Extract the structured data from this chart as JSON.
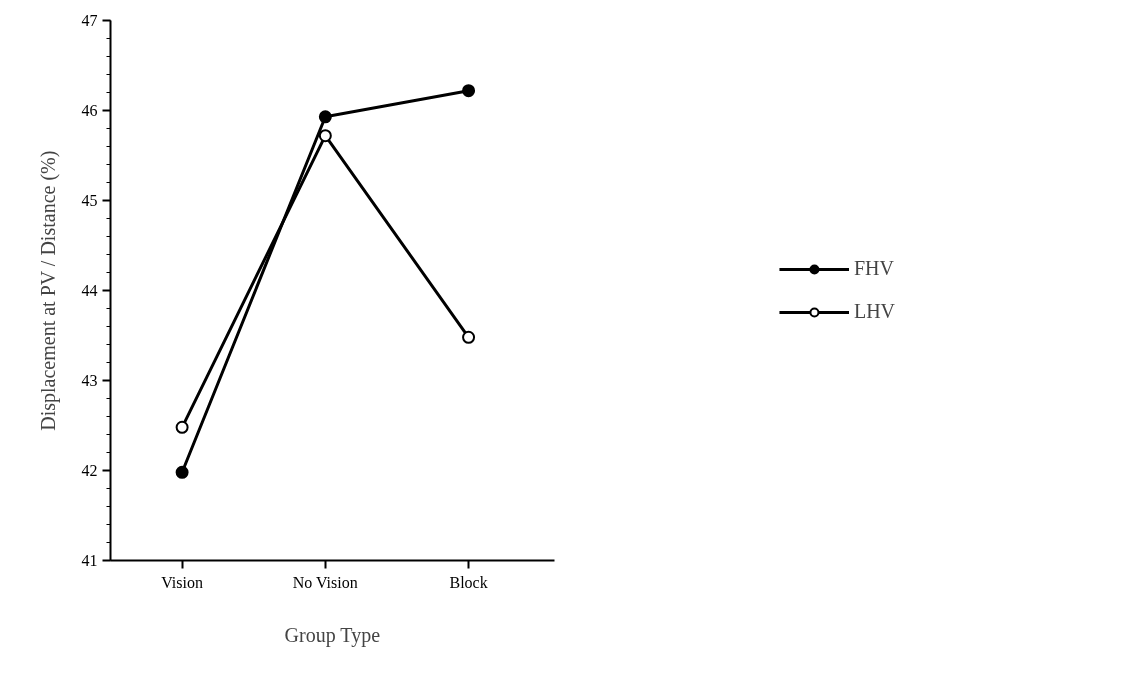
{
  "chart_data": {
    "type": "line",
    "xlabel": "Group Type",
    "ylabel": "Displacement at PV / Distance (%)",
    "categories": [
      "Vision",
      "No Vision",
      "Block"
    ],
    "series": [
      {
        "name": "FHV",
        "color": "#000000",
        "values": [
          41.98,
          45.93,
          46.22
        ]
      },
      {
        "name": "LHV",
        "color": "#000000",
        "values": [
          42.48,
          45.72,
          43.48
        ]
      }
    ],
    "ylim": [
      41,
      47
    ],
    "yticks": [
      41,
      42,
      43,
      44,
      45,
      46,
      47
    ],
    "grid": false,
    "legend": "right",
    "marker": "circle",
    "line_style": "solid"
  }
}
